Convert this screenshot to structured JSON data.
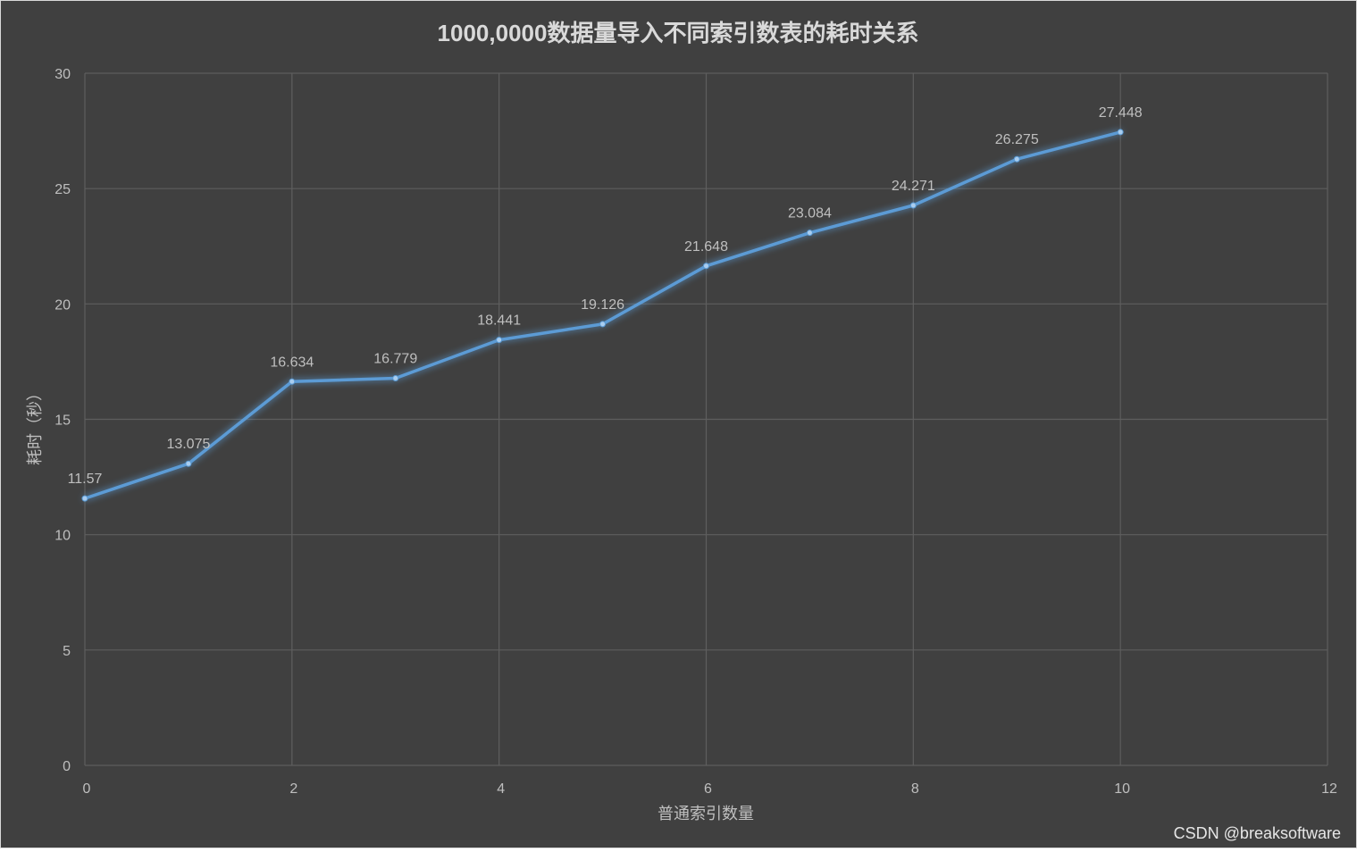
{
  "chart_data": {
    "type": "line",
    "title": "1000,0000数据量导入不同索引数表的耗时关系",
    "xlabel": "普通索引数量",
    "ylabel": "耗时（秒）",
    "xlim": [
      0,
      12
    ],
    "ylim": [
      0,
      30
    ],
    "x_ticks": [
      "0",
      "2",
      "4",
      "6",
      "8",
      "10",
      "12"
    ],
    "y_ticks": [
      "0",
      "5",
      "10",
      "15",
      "20",
      "25",
      "30"
    ],
    "grid": true,
    "series": [
      {
        "x": [
          0,
          1,
          2,
          3,
          4,
          5,
          6,
          7,
          8,
          9,
          10
        ],
        "values": [
          11.57,
          13.075,
          16.634,
          16.779,
          18.441,
          19.126,
          21.648,
          23.084,
          24.271,
          26.275,
          27.448
        ],
        "labels": [
          "11.57",
          "13.075",
          "16.634",
          "16.779",
          "18.441",
          "19.126",
          "21.648",
          "23.084",
          "24.271",
          "26.275",
          "27.448"
        ]
      }
    ],
    "line_color": "#5b9bd5",
    "background_color": "#404040"
  },
  "watermark": "CSDN @breaksoftware"
}
